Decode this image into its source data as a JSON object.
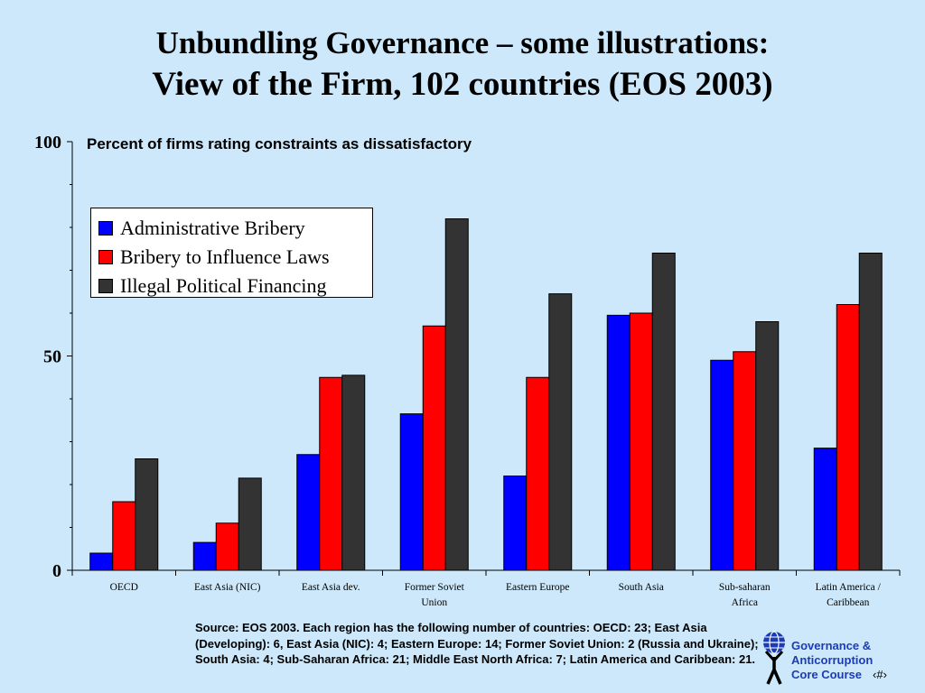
{
  "slide": {
    "title_line1": "Unbundling Governance – some illustrations:",
    "title_line2": "View of the Firm, 102 countries (EOS 2003)",
    "source": "Source:  EOS 2003.  Each region has the following number of countries: OECD: 23; East Asia (Developing): 6, East Asia (NIC): 4; Eastern Europe: 14; Former Soviet Union: 2 (Russia and Ukraine); South Asia: 4; Sub-Saharan Africa: 21; Middle East North Africa: 7; Latin America and Caribbean: 21.",
    "logo_line1": "Governance &",
    "logo_line2": "Anticorruption",
    "logo_line3": "Core Course",
    "page_marker": "‹#›"
  },
  "chart_data": {
    "type": "bar",
    "title": "",
    "subtitle": "Percent of firms rating constraints as dissatisfactory",
    "xlabel": "",
    "ylabel": "",
    "ylim": [
      0,
      100
    ],
    "yticks": [
      "0",
      "50",
      "100"
    ],
    "categories": [
      [
        "OECD"
      ],
      [
        "East Asia (NIC)"
      ],
      [
        "East Asia dev."
      ],
      [
        "Former Soviet",
        "Union"
      ],
      [
        "Eastern Europe"
      ],
      [
        "South Asia"
      ],
      [
        "Sub-saharan",
        "Africa"
      ],
      [
        "Latin America /",
        "Caribbean"
      ]
    ],
    "series": [
      {
        "name": "Administrative Bribery",
        "color": "#0000ff",
        "values": [
          4,
          6.5,
          27,
          36.5,
          22,
          59.5,
          49,
          28.5
        ]
      },
      {
        "name": "Bribery to Influence Laws",
        "color": "#ff0000",
        "values": [
          16,
          11,
          45,
          57,
          45,
          60,
          51,
          62
        ]
      },
      {
        "name": "Illegal Political Financing",
        "color": "#333333",
        "values": [
          26,
          21.5,
          45.5,
          82,
          64.5,
          74,
          58,
          74
        ]
      }
    ],
    "legend_position": "top-left",
    "grid": false
  }
}
